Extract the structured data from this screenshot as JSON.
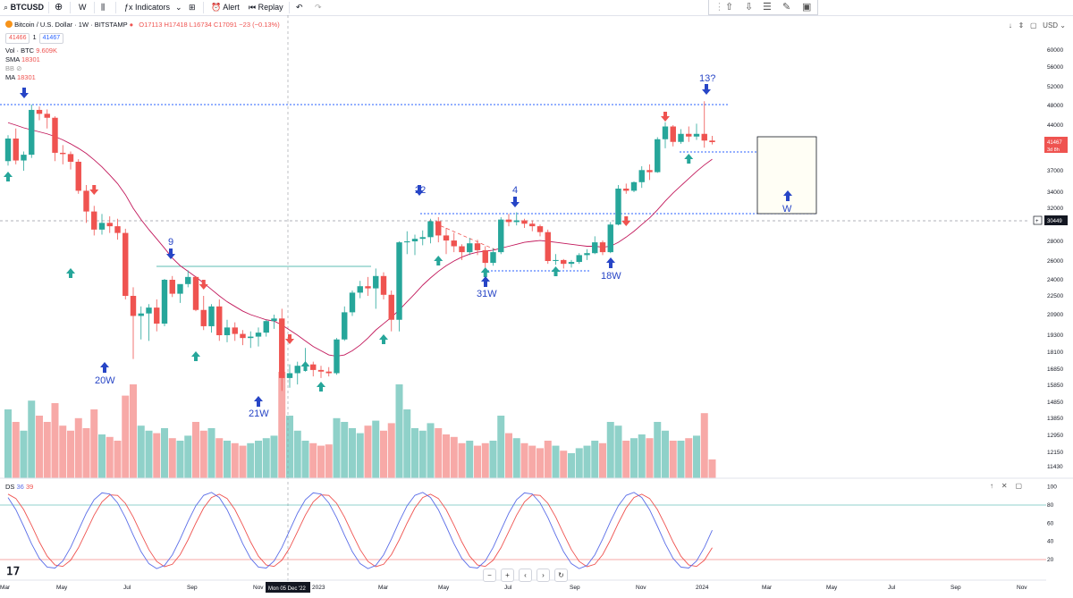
{
  "toolbar": {
    "symbol": "BTCUSD",
    "interval": "W",
    "indicators_label": "Indicators",
    "alert_label": "Alert",
    "replay_label": "Replay"
  },
  "legend": {
    "title": "Bitcoin / U.S. Dollar · 1W · BITSTAMP",
    "ohlc": "O17113 H17418 L16734 C17091 −23 (−0.13%)",
    "bid": "41466",
    "spread": "1",
    "ask": "41467",
    "vol": "Vol · BTC",
    "vol_value": "9.609K",
    "sma": "SMA",
    "sma_value": "18301",
    "bb": "BB",
    "ma": "MA",
    "ma_value": "18301"
  },
  "top_right": {
    "currency": "USD"
  },
  "price_tags": {
    "current": "41467",
    "countdown": "3d 8h",
    "level": "30449"
  },
  "oscillator": {
    "name": "DS",
    "k": "36",
    "d": "39"
  },
  "crosshair_label": "Mon 05 Dec '22",
  "colors": {
    "up": "#26a69a",
    "down": "#ef5350",
    "k_line": "#5b6ee8",
    "d_line": "#ef5350",
    "annotation": "#2745c6",
    "sma": "#c2185b"
  },
  "chart_data": {
    "type": "candlestick",
    "title": "Bitcoin / U.S. Dollar · 1W · BITSTAMP",
    "y_axis_ticks": [
      60000,
      56000,
      52000,
      48000,
      44000,
      41467,
      37000,
      34000,
      32000,
      30449,
      28000,
      26000,
      24000,
      22500,
      20900,
      19300,
      18100,
      16850,
      15850,
      14850,
      13850,
      12950,
      12150,
      11430
    ],
    "x_axis_ticks": [
      "Mar",
      "May",
      "Jul",
      "Sep",
      "Nov",
      "2023",
      "Mar",
      "May",
      "Jul",
      "Sep",
      "Nov",
      "2024",
      "Mar",
      "May",
      "Jul",
      "Sep",
      "Nov"
    ],
    "osc_ticks": [
      100,
      80,
      60,
      40,
      20
    ],
    "osc_bands": [
      80,
      20
    ],
    "candles": [
      [
        38500,
        42500,
        37800,
        42000
      ],
      [
        42000,
        43500,
        38000,
        38600
      ],
      [
        38600,
        40000,
        37000,
        39500
      ],
      [
        39500,
        48200,
        39000,
        47100
      ],
      [
        47100,
        47800,
        45000,
        46300
      ],
      [
        46300,
        47200,
        43500,
        45500
      ],
      [
        45500,
        45800,
        38500,
        39800
      ],
      [
        39800,
        41000,
        38000,
        39600
      ],
      [
        39600,
        40000,
        37200,
        38400
      ],
      [
        38400,
        38800,
        33800,
        34200
      ],
      [
        34200,
        35000,
        30200,
        31600
      ],
      [
        31600,
        32300,
        28700,
        29400
      ],
      [
        29400,
        31300,
        28800,
        30200
      ],
      [
        30200,
        31000,
        29000,
        29800
      ],
      [
        29800,
        30700,
        28200,
        29000
      ],
      [
        29000,
        29500,
        22200,
        22500
      ],
      [
        22500,
        23300,
        17600,
        20800
      ],
      [
        20800,
        21600,
        19000,
        21000
      ],
      [
        21000,
        21800,
        18900,
        21500
      ],
      [
        21500,
        22200,
        19600,
        20200
      ],
      [
        20200,
        24100,
        20000,
        24000
      ],
      [
        24000,
        24400,
        22400,
        22700
      ],
      [
        22700,
        23400,
        21900,
        23600
      ],
      [
        23600,
        25000,
        23300,
        24300
      ],
      [
        24300,
        24400,
        21200,
        21300
      ],
      [
        21300,
        22500,
        19700,
        20000
      ],
      [
        20000,
        21800,
        19500,
        21600
      ],
      [
        21600,
        22200,
        18900,
        19300
      ],
      [
        19300,
        20500,
        18800,
        19900
      ],
      [
        19900,
        20300,
        18900,
        19400
      ],
      [
        19400,
        19700,
        18600,
        19100
      ],
      [
        19100,
        19600,
        18400,
        19200
      ],
      [
        19200,
        19900,
        18500,
        19500
      ],
      [
        19500,
        20500,
        19200,
        20400
      ],
      [
        20400,
        20900,
        19800,
        20600
      ],
      [
        20600,
        21400,
        15500,
        16300
      ],
      [
        16300,
        17200,
        15700,
        16600
      ],
      [
        16600,
        17400,
        15900,
        17100
      ],
      [
        17100,
        18400,
        16700,
        17200
      ],
      [
        17200,
        17400,
        16400,
        16800
      ],
      [
        16800,
        17100,
        16300,
        16700
      ],
      [
        16700,
        17000,
        16400,
        16600
      ],
      [
        16600,
        19100,
        16500,
        19000
      ],
      [
        19000,
        21600,
        18900,
        21100
      ],
      [
        21100,
        23000,
        20800,
        22800
      ],
      [
        22800,
        23900,
        22300,
        23400
      ],
      [
        23400,
        24300,
        22500,
        23200
      ],
      [
        23200,
        25200,
        21400,
        24400
      ],
      [
        24400,
        24800,
        22200,
        22600
      ],
      [
        22600,
        23000,
        19600,
        20500
      ],
      [
        20500,
        28000,
        19600,
        27900
      ],
      [
        27900,
        29200,
        26700,
        28000
      ],
      [
        28000,
        28800,
        26600,
        28300
      ],
      [
        28300,
        29300,
        27600,
        28500
      ],
      [
        28500,
        30700,
        27800,
        30400
      ],
      [
        30400,
        30900,
        27900,
        28700
      ],
      [
        28700,
        29600,
        26700,
        28100
      ],
      [
        28100,
        29000,
        26900,
        27500
      ],
      [
        27500,
        27700,
        26100,
        26900
      ],
      [
        26900,
        28400,
        26600,
        27800
      ],
      [
        27800,
        28200,
        26600,
        27100
      ],
      [
        27100,
        27500,
        25300,
        25800
      ],
      [
        25800,
        27300,
        25500,
        26900
      ],
      [
        26900,
        30900,
        26700,
        30600
      ],
      [
        30600,
        31300,
        29800,
        30300
      ],
      [
        30300,
        31500,
        29900,
        30500
      ],
      [
        30500,
        30700,
        29600,
        30100
      ],
      [
        30100,
        30500,
        29200,
        29800
      ],
      [
        29800,
        30000,
        28600,
        29100
      ],
      [
        29100,
        29400,
        25700,
        26000
      ],
      [
        26000,
        26700,
        25600,
        26100
      ],
      [
        26100,
        26200,
        25200,
        25700
      ],
      [
        25700,
        26100,
        25300,
        25900
      ],
      [
        25900,
        26800,
        25700,
        26600
      ],
      [
        26600,
        27200,
        26100,
        26800
      ],
      [
        26800,
        28600,
        26700,
        27900
      ],
      [
        27900,
        28100,
        26600,
        26900
      ],
      [
        26900,
        30300,
        26800,
        30000
      ],
      [
        30000,
        35000,
        29900,
        34500
      ],
      [
        34500,
        35200,
        33800,
        34200
      ],
      [
        34200,
        35500,
        34000,
        35400
      ],
      [
        35400,
        37700,
        34600,
        37100
      ],
      [
        37100,
        38000,
        35700,
        36800
      ],
      [
        36800,
        42200,
        36700,
        41900
      ],
      [
        41900,
        44600,
        40500,
        43800
      ],
      [
        43800,
        44000,
        40800,
        41500
      ],
      [
        41500,
        43400,
        41200,
        42700
      ],
      [
        42700,
        43800,
        41500,
        42300
      ],
      [
        42300,
        44300,
        41800,
        42700
      ],
      [
        42700,
        48900,
        40600,
        41700
      ],
      [
        41700,
        42400,
        41100,
        41467
      ]
    ],
    "volume": [
      55,
      45,
      38,
      62,
      50,
      45,
      60,
      42,
      38,
      48,
      40,
      55,
      35,
      33,
      30,
      66,
      75,
      42,
      38,
      36,
      40,
      32,
      30,
      34,
      45,
      38,
      40,
      32,
      30,
      28,
      26,
      28,
      30,
      32,
      34,
      85,
      50,
      38,
      30,
      28,
      26,
      27,
      48,
      45,
      40,
      36,
      42,
      46,
      38,
      44,
      75,
      55,
      40,
      38,
      44,
      40,
      35,
      33,
      28,
      30,
      26,
      28,
      30,
      50,
      36,
      32,
      28,
      26,
      24,
      30,
      26,
      22,
      20,
      24,
      26,
      30,
      28,
      45,
      42,
      30,
      32,
      35,
      32,
      45,
      38,
      30,
      30,
      32,
      34,
      52,
      15
    ],
    "sma": [
      44500,
      44000,
      43600,
      43300,
      43000,
      42700,
      42300,
      41800,
      41200,
      40500,
      39700,
      38700,
      37600,
      36400,
      35200,
      33700,
      32000,
      30600,
      29400,
      28300,
      27300,
      26300,
      25500,
      24900,
      24300,
      23700,
      23100,
      22500,
      22000,
      21600,
      21200,
      20900,
      20700,
      20500,
      20400,
      20100,
      19700,
      19300,
      18900,
      18500,
      18200,
      17900,
      17800,
      17900,
      18200,
      18600,
      19100,
      19700,
      20200,
      20700,
      21300,
      22000,
      22700,
      23500,
      24200,
      24900,
      25500,
      26000,
      26400,
      26700,
      26900,
      27000,
      27100,
      27300,
      27500,
      27700,
      27900,
      28000,
      28100,
      28000,
      27900,
      27800,
      27700,
      27600,
      27500,
      27500,
      27400,
      27500,
      27900,
      28500,
      29200,
      30000,
      30800,
      31800,
      32900,
      33900,
      34900,
      35900,
      36900,
      37900,
      38800
    ]
  },
  "annotations": [
    {
      "label": "9"
    },
    {
      "label": "20W"
    },
    {
      "label": "21W"
    },
    {
      "label": "22"
    },
    {
      "label": "4"
    },
    {
      "label": "31W"
    },
    {
      "label": "18W"
    },
    {
      "label": "13?"
    },
    {
      "label": "W"
    }
  ]
}
